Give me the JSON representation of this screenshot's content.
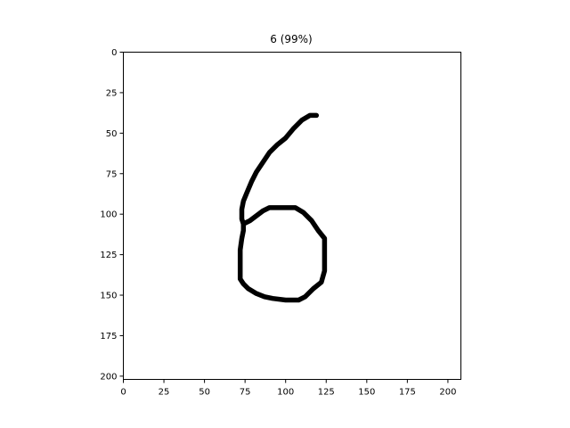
{
  "chart_data": {
    "type": "image",
    "title": "6 (99%)",
    "xlim": [
      0,
      208
    ],
    "ylim": [
      202,
      0
    ],
    "xticks": [
      0,
      25,
      50,
      75,
      100,
      125,
      150,
      175,
      200
    ],
    "yticks": [
      0,
      25,
      50,
      75,
      100,
      125,
      150,
      175,
      200
    ],
    "grid": false,
    "legend": "none",
    "colors": {
      "stroke": "#000000",
      "background": "#ffffff"
    },
    "strokes": [
      {
        "name": "stem",
        "points": [
          [
            119,
            39
          ],
          [
            115,
            39
          ],
          [
            110,
            42
          ],
          [
            105,
            47
          ],
          [
            100,
            53
          ],
          [
            95,
            57
          ],
          [
            90,
            62
          ],
          [
            86,
            68
          ],
          [
            82,
            74
          ],
          [
            79,
            80
          ],
          [
            76,
            87
          ],
          [
            74,
            92
          ],
          [
            73,
            97
          ],
          [
            73,
            103
          ],
          [
            74,
            106
          ]
        ]
      },
      {
        "name": "loop",
        "points": [
          [
            74,
            106
          ],
          [
            78,
            104
          ],
          [
            82,
            101
          ],
          [
            86,
            98
          ],
          [
            90,
            96
          ],
          [
            98,
            96
          ],
          [
            106,
            96
          ],
          [
            111,
            99
          ],
          [
            116,
            104
          ],
          [
            120,
            110
          ],
          [
            124,
            115
          ],
          [
            124,
            126
          ],
          [
            124,
            135
          ],
          [
            122,
            142
          ],
          [
            117,
            146
          ],
          [
            112,
            151
          ],
          [
            108,
            153
          ],
          [
            100,
            153
          ],
          [
            92,
            152
          ],
          [
            87,
            151
          ],
          [
            82,
            149
          ],
          [
            77,
            146
          ],
          [
            74,
            143
          ],
          [
            72,
            140
          ],
          [
            72,
            131
          ],
          [
            72,
            122
          ],
          [
            73,
            115
          ],
          [
            74,
            110
          ],
          [
            74,
            106
          ]
        ]
      }
    ]
  }
}
